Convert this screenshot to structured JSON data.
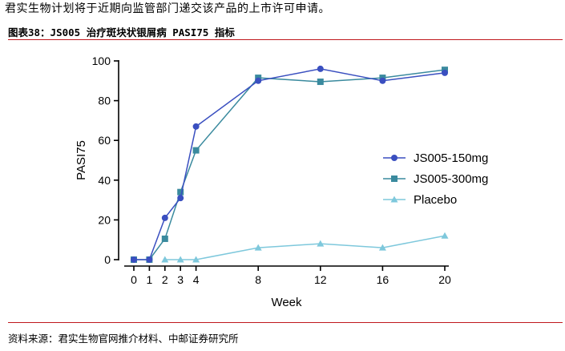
{
  "intro_text": "君实生物计划将于近期向监管部门递交该产品的上市许可申请。",
  "figure": {
    "caption": "图表38：JS005 治疗斑块状银屑病 PASI75 指标",
    "source": "资料来源：君实生物官网推介材料、中邮证券研究所"
  },
  "chart_data": {
    "type": "line",
    "title": "",
    "xlabel": "Week",
    "ylabel": "PASI75",
    "x_ticks": [
      0,
      1,
      2,
      3,
      4,
      8,
      12,
      16,
      20
    ],
    "y_ticks": [
      0,
      20,
      40,
      60,
      80,
      100
    ],
    "ylim": [
      0,
      100
    ],
    "legend_position": "right",
    "series": [
      {
        "name": "JS005-150mg",
        "color": "#3a4fc0",
        "marker": "circle",
        "x": [
          0,
          1,
          2,
          3,
          4,
          8,
          12,
          16,
          20
        ],
        "values": [
          0,
          0,
          21,
          31,
          67,
          90,
          96,
          90,
          94
        ]
      },
      {
        "name": "JS005-300mg",
        "color": "#3a8a9e",
        "marker": "square",
        "x": [
          0,
          1,
          2,
          3,
          4,
          8,
          12,
          16,
          20
        ],
        "values": [
          0,
          0,
          10.5,
          34,
          55,
          91.5,
          89.5,
          91.5,
          95.5
        ]
      },
      {
        "name": "Placebo",
        "color": "#7ec8dc",
        "marker": "triangle",
        "x": [
          2,
          3,
          4,
          8,
          12,
          16,
          20
        ],
        "values": [
          0,
          0,
          0,
          6,
          8,
          6,
          12
        ]
      }
    ]
  }
}
